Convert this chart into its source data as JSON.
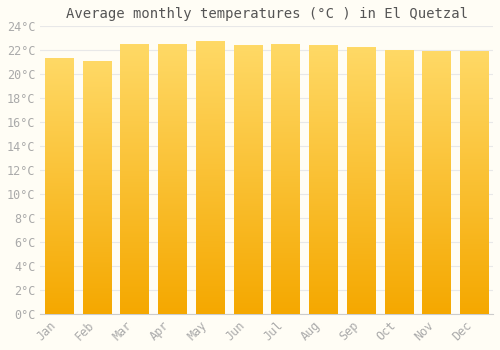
{
  "title": "Average monthly temperatures (°C ) in El Quetzal",
  "months": [
    "Jan",
    "Feb",
    "Mar",
    "Apr",
    "May",
    "Jun",
    "Jul",
    "Aug",
    "Sep",
    "Oct",
    "Nov",
    "Dec"
  ],
  "values": [
    21.3,
    21.1,
    22.5,
    22.5,
    22.7,
    22.4,
    22.5,
    22.4,
    22.2,
    22.0,
    21.9,
    21.9
  ],
  "bar_color_bottom": "#F5A800",
  "bar_color_top": "#FFD966",
  "background_color": "#FFFDF5",
  "grid_color": "#E8E8E8",
  "tick_color": "#AAAAAA",
  "title_color": "#555555",
  "ylim": [
    0,
    24
  ],
  "ytick_step": 2,
  "title_fontsize": 10,
  "tick_fontsize": 8.5,
  "font_family": "monospace"
}
